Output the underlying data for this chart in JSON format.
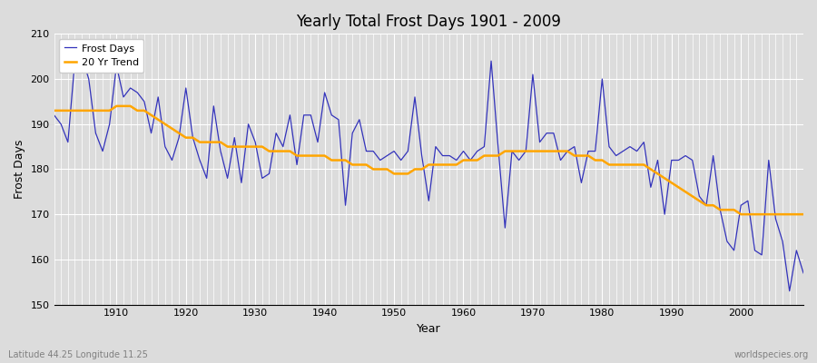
{
  "title": "Yearly Total Frost Days 1901 - 2009",
  "xlabel": "Year",
  "ylabel": "Frost Days",
  "subtitle_left": "Latitude 44.25 Longitude 11.25",
  "subtitle_right": "worldspecies.org",
  "legend_entries": [
    "Frost Days",
    "20 Yr Trend"
  ],
  "line_color": "#3333bb",
  "trend_color": "#FFA500",
  "bg_color": "#dcdcdc",
  "plot_bg_color": "#dcdcdc",
  "ylim": [
    150,
    210
  ],
  "xlim": [
    1901,
    2009
  ],
  "yticks": [
    150,
    160,
    170,
    180,
    190,
    200,
    210
  ],
  "xticks": [
    1910,
    1920,
    1930,
    1940,
    1950,
    1960,
    1970,
    1980,
    1990,
    2000
  ],
  "years": [
    1901,
    1902,
    1903,
    1904,
    1905,
    1906,
    1907,
    1908,
    1909,
    1910,
    1911,
    1912,
    1913,
    1914,
    1915,
    1916,
    1917,
    1918,
    1919,
    1920,
    1921,
    1922,
    1923,
    1924,
    1925,
    1926,
    1927,
    1928,
    1929,
    1930,
    1931,
    1932,
    1933,
    1934,
    1935,
    1936,
    1937,
    1938,
    1939,
    1940,
    1941,
    1942,
    1943,
    1944,
    1945,
    1946,
    1947,
    1948,
    1949,
    1950,
    1951,
    1952,
    1953,
    1954,
    1955,
    1956,
    1957,
    1958,
    1959,
    1960,
    1961,
    1962,
    1963,
    1964,
    1965,
    1966,
    1967,
    1968,
    1969,
    1970,
    1971,
    1972,
    1973,
    1974,
    1975,
    1976,
    1977,
    1978,
    1979,
    1980,
    1981,
    1982,
    1983,
    1984,
    1985,
    1986,
    1987,
    1988,
    1989,
    1990,
    1991,
    1992,
    1993,
    1994,
    1995,
    1996,
    1997,
    1998,
    1999,
    2000,
    2001,
    2002,
    2003,
    2004,
    2005,
    2006,
    2007,
    2008,
    2009
  ],
  "frost_days": [
    192,
    190,
    186,
    204,
    205,
    200,
    188,
    184,
    190,
    203,
    196,
    198,
    197,
    195,
    188,
    196,
    185,
    182,
    187,
    198,
    187,
    182,
    178,
    194,
    184,
    178,
    187,
    177,
    190,
    186,
    178,
    179,
    188,
    185,
    192,
    181,
    192,
    192,
    186,
    197,
    192,
    191,
    172,
    188,
    191,
    184,
    184,
    182,
    183,
    184,
    182,
    184,
    196,
    183,
    173,
    185,
    183,
    183,
    182,
    184,
    182,
    184,
    185,
    204,
    185,
    167,
    184,
    182,
    184,
    201,
    186,
    188,
    188,
    182,
    184,
    185,
    177,
    184,
    184,
    200,
    185,
    183,
    184,
    185,
    184,
    186,
    176,
    182,
    170,
    182,
    182,
    183,
    182,
    174,
    172,
    183,
    171,
    164,
    162,
    172,
    173,
    162,
    161,
    182,
    169,
    164,
    153,
    162,
    157
  ],
  "trend_values": [
    193,
    193,
    193,
    193,
    193,
    193,
    193,
    193,
    193,
    194,
    194,
    194,
    193,
    193,
    192,
    191,
    190,
    189,
    188,
    187,
    187,
    186,
    186,
    186,
    186,
    185,
    185,
    185,
    185,
    185,
    185,
    184,
    184,
    184,
    184,
    183,
    183,
    183,
    183,
    183,
    182,
    182,
    182,
    181,
    181,
    181,
    180,
    180,
    180,
    179,
    179,
    179,
    180,
    180,
    181,
    181,
    181,
    181,
    181,
    182,
    182,
    182,
    183,
    183,
    183,
    184,
    184,
    184,
    184,
    184,
    184,
    184,
    184,
    184,
    184,
    183,
    183,
    183,
    182,
    182,
    181,
    181,
    181,
    181,
    181,
    181,
    180,
    179,
    178,
    177,
    176,
    175,
    174,
    173,
    172,
    172,
    171,
    171,
    171,
    170,
    170,
    170,
    170,
    170,
    170,
    170,
    170,
    170,
    170
  ]
}
